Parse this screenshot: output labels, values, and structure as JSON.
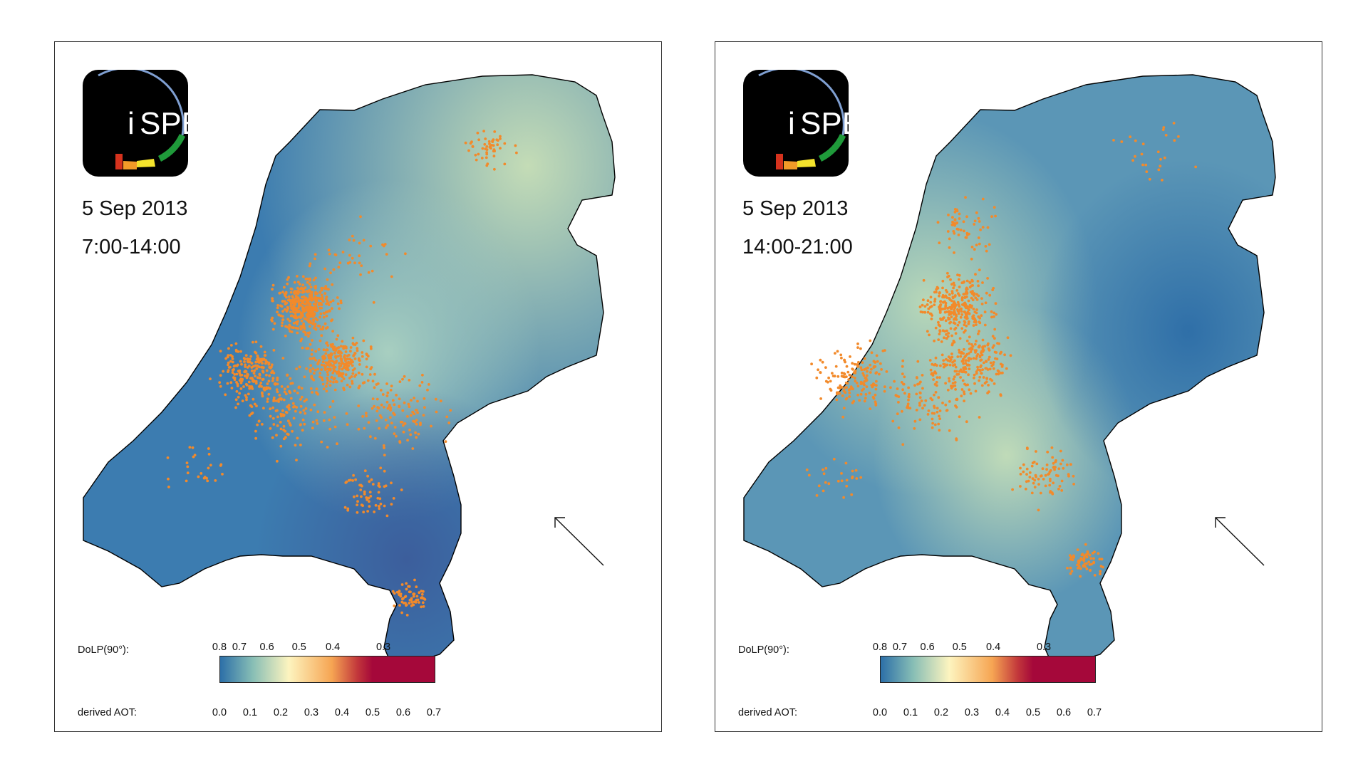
{
  "colors": {
    "low": "#2c6fa8",
    "mid": "#86bdb5",
    "pale": "#fdf4bf",
    "orange": "#f6a553",
    "high": "#a5083a",
    "points": "#f28a2b"
  },
  "logo": {
    "text": "SPEX",
    "prefix": "i"
  },
  "colorbar": {
    "dolp_label": "DoLP(90°):",
    "aot_label": "derived AOT:",
    "dolp_ticks": [
      {
        "label": "0.8",
        "aot": 0.0
      },
      {
        "label": "0.7",
        "aot": 0.065
      },
      {
        "label": "0.6",
        "aot": 0.155
      },
      {
        "label": "0.5",
        "aot": 0.26
      },
      {
        "label": "0.4",
        "aot": 0.37
      },
      {
        "label": "0.3",
        "aot": 0.535
      }
    ],
    "aot_ticks": [
      "0.0",
      "0.1",
      "0.2",
      "0.3",
      "0.4",
      "0.5",
      "0.6",
      "0.7"
    ],
    "aot_range": [
      0.0,
      0.7
    ]
  },
  "panels": [
    {
      "date": "5 Sep 2013",
      "time": "7:00-14:00",
      "icon": "ispex-logo-icon",
      "arrow_icon": "wind-direction-arrow-icon"
    },
    {
      "date": "5 Sep 2013",
      "time": "14:00-21:00",
      "icon": "ispex-logo-icon",
      "arrow_icon": "wind-direction-arrow-icon"
    }
  ]
}
